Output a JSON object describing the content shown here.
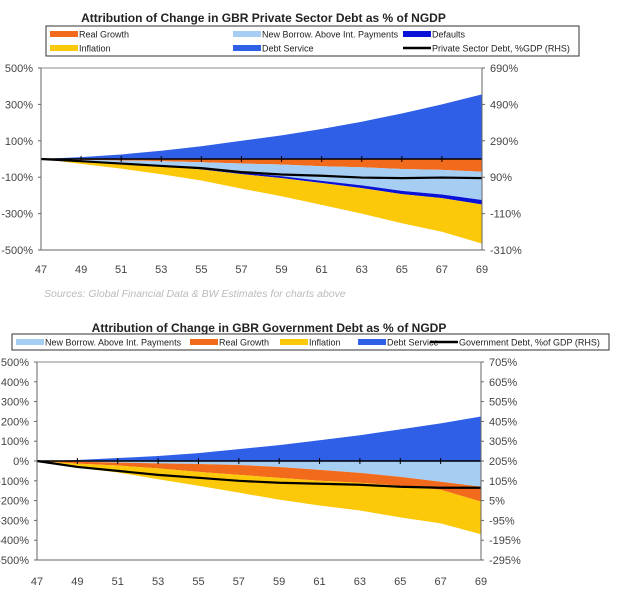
{
  "chart_data": [
    {
      "type": "area",
      "title": "Attribution of Change in GBR Private Sector Debt as % of NGDP",
      "x": [
        "47",
        "49",
        "51",
        "53",
        "55",
        "57",
        "59",
        "61",
        "63",
        "65",
        "67",
        "69"
      ],
      "ylim": [
        -500,
        500
      ],
      "yticks": [
        "500%",
        "300%",
        "100%",
        "-100%",
        "-300%",
        "-500%"
      ],
      "y2lim": [
        -310,
        690
      ],
      "y2ticks": [
        "690%",
        "490%",
        "290%",
        "90%",
        "-110%",
        "-310%"
      ],
      "legend_position": "top",
      "legend": [
        {
          "name": "Real Growth",
          "color": "#f26a1b",
          "kind": "area"
        },
        {
          "name": "New Borrow. Above Int. Payments",
          "color": "#a6cdf2",
          "kind": "area"
        },
        {
          "name": "Defaults",
          "color": "#0a12d8",
          "kind": "area"
        },
        {
          "name": "Inflation",
          "color": "#fcc80a",
          "kind": "area"
        },
        {
          "name": "Debt Service",
          "color": "#2f5fe6",
          "kind": "area"
        },
        {
          "name": "Private Sector Debt, %GDP (RHS)",
          "color": "#000000",
          "kind": "line"
        }
      ],
      "positive": [
        {
          "name": "Debt Service",
          "color": "#2f5fe6",
          "values": [
            0,
            10,
            25,
            45,
            70,
            100,
            130,
            165,
            205,
            250,
            300,
            355
          ]
        }
      ],
      "negative": [
        {
          "name": "Real Growth",
          "color": "#f26a1b",
          "values": [
            0,
            -5,
            -8,
            -12,
            -18,
            -25,
            -30,
            -40,
            -45,
            -55,
            -60,
            -70
          ]
        },
        {
          "name": "New Borrow. Above Int. Payments",
          "color": "#a6cdf2",
          "values": [
            0,
            -5,
            -12,
            -22,
            -35,
            -50,
            -65,
            -80,
            -100,
            -120,
            -135,
            -155
          ]
        },
        {
          "name": "Defaults",
          "color": "#0a12d8",
          "values": [
            0,
            -2,
            -3,
            -5,
            -5,
            -8,
            -10,
            -12,
            -15,
            -18,
            -20,
            -25
          ]
        },
        {
          "name": "Inflation",
          "color": "#fcc80a",
          "values": [
            0,
            -15,
            -30,
            -45,
            -60,
            -80,
            -100,
            -120,
            -140,
            -160,
            -185,
            -215
          ]
        }
      ],
      "line": {
        "name": "Private Sector Debt, %GDP (RHS)",
        "color": "#000000",
        "values": [
          190,
          178,
          165,
          152,
          140,
          118,
          105,
          98,
          88,
          85,
          88,
          85
        ]
      },
      "source": "Sources: Global Financial Data & BW Estimates for charts above"
    },
    {
      "type": "area",
      "title": "Attribution of Change in GBR Government Debt as % of NGDP",
      "x": [
        "47",
        "49",
        "51",
        "53",
        "55",
        "57",
        "59",
        "61",
        "63",
        "65",
        "67",
        "69"
      ],
      "ylim": [
        -500,
        500
      ],
      "yticks": [
        "500%",
        "400%",
        "300%",
        "200%",
        "100%",
        "0%",
        "-100%",
        "-200%",
        "-300%",
        "-400%",
        "-500%"
      ],
      "y2lim": [
        -295,
        705
      ],
      "y2ticks": [
        "705%",
        "605%",
        "505%",
        "405%",
        "305%",
        "205%",
        "105%",
        "5%",
        "-95%",
        "-195%",
        "-295%"
      ],
      "legend_position": "top",
      "legend": [
        {
          "name": "New Borrow. Above Int. Payments",
          "color": "#a6cdf2",
          "kind": "area"
        },
        {
          "name": "Real Growth",
          "color": "#f26a1b",
          "kind": "area"
        },
        {
          "name": "Inflation",
          "color": "#fcc80a",
          "kind": "area"
        },
        {
          "name": "Debt Service",
          "color": "#2f5fe6",
          "kind": "area"
        },
        {
          "name": "Government Debt, %of GDP (RHS)",
          "color": "#000000",
          "kind": "line"
        }
      ],
      "positive": [
        {
          "name": "Debt Service",
          "color": "#2f5fe6",
          "values": [
            0,
            5,
            15,
            25,
            40,
            60,
            80,
            105,
            130,
            160,
            190,
            225
          ]
        }
      ],
      "negative": [
        {
          "name": "New Borrow. Above Int. Payments",
          "color": "#a6cdf2",
          "values": [
            0,
            -3,
            -8,
            -12,
            -15,
            -20,
            -30,
            -45,
            -60,
            -80,
            -105,
            -130
          ]
        },
        {
          "name": "Real Growth",
          "color": "#f26a1b",
          "values": [
            0,
            -10,
            -15,
            -25,
            -40,
            -50,
            -55,
            -55,
            -50,
            -45,
            -40,
            -75
          ]
        },
        {
          "name": "Inflation",
          "color": "#fcc80a",
          "values": [
            0,
            -20,
            -35,
            -55,
            -70,
            -90,
            -110,
            -125,
            -140,
            -160,
            -170,
            -165
          ]
        }
      ],
      "line": {
        "name": "Government Debt, %of GDP (RHS)",
        "color": "#000000",
        "values": [
          205,
          175,
          155,
          135,
          120,
          105,
          95,
          90,
          85,
          75,
          70,
          70
        ]
      }
    }
  ]
}
